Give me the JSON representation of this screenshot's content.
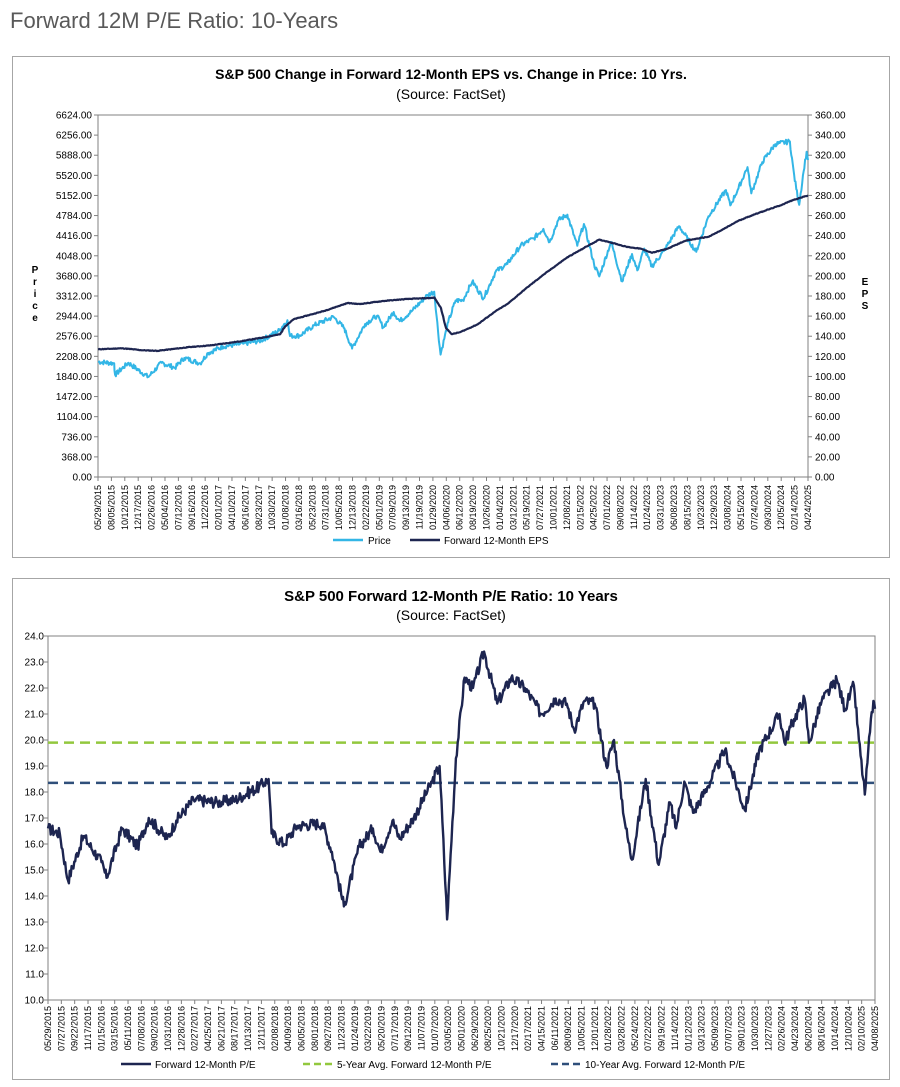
{
  "page_title": "Forward 12M P/E Ratio: 10-Years",
  "colors": {
    "price": "#33b6e6",
    "eps": "#1d2550",
    "pe": "#1d2550",
    "avg5": "#92c83e",
    "avg10": "#2f4f7a",
    "axis": "#808080",
    "text": "#000000"
  },
  "chart_data": [
    {
      "type": "line",
      "title": "S&P 500 Change in Forward 12-Month EPS vs. Change in Price: 10 Yrs.",
      "subtitle": "(Source: FactSet)",
      "ylabel_left": "Price",
      "ylabel_right": "EPS",
      "left_ticks": [
        "0.00",
        "368.00",
        "736.00",
        "1104.00",
        "1472.00",
        "1840.00",
        "2208.00",
        "2576.00",
        "2944.00",
        "3312.00",
        "3680.00",
        "4048.00",
        "4416.00",
        "4784.00",
        "5152.00",
        "5520.00",
        "5888.00",
        "6256.00",
        "6624.00"
      ],
      "right_ticks": [
        "0.00",
        "20.00",
        "40.00",
        "60.00",
        "80.00",
        "100.00",
        "120.00",
        "140.00",
        "160.00",
        "180.00",
        "200.00",
        "220.00",
        "240.00",
        "260.00",
        "280.00",
        "300.00",
        "320.00",
        "340.00",
        "360.00"
      ],
      "ylim_left": [
        0,
        6624
      ],
      "ylim_right": [
        0,
        360
      ],
      "x_range": [
        "2015-05-29",
        "2025-05-23"
      ],
      "x_ticks": [
        "05/29/2015",
        "08/05/2015",
        "10/12/2015",
        "12/17/2015",
        "02/26/2016",
        "05/04/2016",
        "07/12/2016",
        "09/16/2016",
        "11/22/2016",
        "02/01/2017",
        "04/10/2017",
        "06/16/2017",
        "08/23/2017",
        "10/30/2017",
        "01/08/2018",
        "03/16/2018",
        "05/23/2018",
        "07/31/2018",
        "10/05/2018",
        "12/13/2018",
        "02/22/2019",
        "05/01/2019",
        "07/09/2019",
        "09/13/2019",
        "11/19/2019",
        "01/29/2020",
        "04/06/2020",
        "06/12/2020",
        "08/19/2020",
        "10/26/2020",
        "01/04/2021",
        "03/12/2021",
        "05/19/2021",
        "07/27/2021",
        "10/01/2021",
        "12/08/2021",
        "02/15/2022",
        "04/25/2022",
        "07/01/2022",
        "09/08/2022",
        "11/14/2022",
        "01/24/2023",
        "03/31/2023",
        "06/08/2023",
        "08/15/2023",
        "10/23/2023",
        "12/29/2023",
        "03/08/2024",
        "05/15/2024",
        "07/24/2024",
        "09/30/2024",
        "12/05/2024",
        "02/14/2025",
        "04/24/2025"
      ],
      "legend": [
        "Price",
        "Forward 12-Month EPS"
      ],
      "legend_position": "bottom",
      "series": [
        {
          "name": "Price",
          "axis": "left",
          "points": [
            [
              "2015-05-29",
              2110
            ],
            [
              "2015-08-20",
              2080
            ],
            [
              "2015-08-25",
              1870
            ],
            [
              "2015-11-01",
              2090
            ],
            [
              "2016-02-11",
              1830
            ],
            [
              "2016-04-20",
              2090
            ],
            [
              "2016-06-27",
              2000
            ],
            [
              "2016-08-15",
              2180
            ],
            [
              "2016-11-04",
              2080
            ],
            [
              "2016-12-15",
              2270
            ],
            [
              "2017-03-01",
              2390
            ],
            [
              "2017-06-15",
              2440
            ],
            [
              "2017-09-15",
              2500
            ],
            [
              "2017-12-15",
              2680
            ],
            [
              "2018-01-26",
              2870
            ],
            [
              "2018-02-08",
              2580
            ],
            [
              "2018-04-01",
              2590
            ],
            [
              "2018-06-15",
              2780
            ],
            [
              "2018-09-20",
              2930
            ],
            [
              "2018-11-15",
              2720
            ],
            [
              "2018-12-24",
              2350
            ],
            [
              "2019-03-01",
              2800
            ],
            [
              "2019-05-01",
              2950
            ],
            [
              "2019-06-03",
              2740
            ],
            [
              "2019-07-26",
              3020
            ],
            [
              "2019-08-26",
              2850
            ],
            [
              "2019-10-28",
              3040
            ],
            [
              "2020-01-17",
              3330
            ],
            [
              "2020-02-19",
              3390
            ],
            [
              "2020-03-23",
              2240
            ],
            [
              "2020-05-01",
              2830
            ],
            [
              "2020-06-08",
              3230
            ],
            [
              "2020-07-15",
              3230
            ],
            [
              "2020-09-02",
              3580
            ],
            [
              "2020-10-30",
              3270
            ],
            [
              "2020-12-31",
              3760
            ],
            [
              "2021-03-01",
              3900
            ],
            [
              "2021-05-07",
              4230
            ],
            [
              "2021-07-15",
              4370
            ],
            [
              "2021-09-02",
              4540
            ],
            [
              "2021-10-04",
              4300
            ],
            [
              "2021-11-18",
              4700
            ],
            [
              "2022-01-03",
              4800
            ],
            [
              "2022-02-23",
              4230
            ],
            [
              "2022-03-29",
              4630
            ],
            [
              "2022-05-20",
              3900
            ],
            [
              "2022-06-16",
              3670
            ],
            [
              "2022-08-16",
              4300
            ],
            [
              "2022-10-12",
              3580
            ],
            [
              "2022-12-01",
              4080
            ],
            [
              "2022-12-28",
              3780
            ],
            [
              "2023-02-02",
              4180
            ],
            [
              "2023-03-13",
              3850
            ],
            [
              "2023-05-15",
              4140
            ],
            [
              "2023-07-31",
              4590
            ],
            [
              "2023-10-27",
              4120
            ],
            [
              "2023-12-29",
              4770
            ],
            [
              "2024-03-28",
              5250
            ],
            [
              "2024-04-19",
              4970
            ],
            [
              "2024-05-31",
              5280
            ],
            [
              "2024-07-16",
              5670
            ],
            [
              "2024-08-05",
              5190
            ],
            [
              "2024-09-30",
              5760
            ],
            [
              "2024-12-06",
              6090
            ],
            [
              "2025-02-19",
              6140
            ],
            [
              "2025-03-13",
              5520
            ],
            [
              "2025-04-08",
              4980
            ],
            [
              "2025-05-01",
              5600
            ],
            [
              "2025-05-16",
              5950
            ],
            [
              "2025-05-23",
              5800
            ]
          ]
        },
        {
          "name": "Forward 12-Month EPS",
          "axis": "right",
          "points": [
            [
              "2015-05-29",
              127
            ],
            [
              "2015-10-01",
              128
            ],
            [
              "2016-01-15",
              126
            ],
            [
              "2016-04-01",
              125.5
            ],
            [
              "2016-09-01",
              129
            ],
            [
              "2017-01-01",
              131
            ],
            [
              "2017-06-01",
              135
            ],
            [
              "2017-10-01",
              139
            ],
            [
              "2017-12-20",
              142
            ],
            [
              "2018-01-15",
              150
            ],
            [
              "2018-03-01",
              157
            ],
            [
              "2018-08-01",
              165
            ],
            [
              "2018-12-01",
              173
            ],
            [
              "2019-02-01",
              172
            ],
            [
              "2019-06-01",
              175
            ],
            [
              "2019-10-01",
              177
            ],
            [
              "2020-02-01",
              178
            ],
            [
              "2020-02-20",
              178.5
            ],
            [
              "2020-03-25",
              168
            ],
            [
              "2020-04-20",
              148
            ],
            [
              "2020-05-20",
              142
            ],
            [
              "2020-07-01",
              144
            ],
            [
              "2020-10-01",
              152
            ],
            [
              "2020-12-31",
              165
            ],
            [
              "2021-03-01",
              172
            ],
            [
              "2021-06-01",
              187
            ],
            [
              "2021-09-01",
              201
            ],
            [
              "2021-12-31",
              218
            ],
            [
              "2022-04-01",
              228
            ],
            [
              "2022-06-15",
              236
            ],
            [
              "2022-08-01",
              234
            ],
            [
              "2022-11-01",
              229
            ],
            [
              "2023-01-15",
              227
            ],
            [
              "2023-03-15",
              223
            ],
            [
              "2023-06-01",
              227
            ],
            [
              "2023-09-01",
              235
            ],
            [
              "2023-12-31",
              239
            ],
            [
              "2024-03-01",
              245
            ],
            [
              "2024-06-01",
              255
            ],
            [
              "2024-09-01",
              262
            ],
            [
              "2024-12-31",
              270
            ],
            [
              "2025-03-01",
              275
            ],
            [
              "2025-05-23",
              280
            ]
          ]
        }
      ]
    },
    {
      "type": "line",
      "title": "S&P 500 Forward 12-Month P/E Ratio: 10 Years",
      "subtitle": "(Source: FactSet)",
      "y_ticks": [
        "10.0",
        "11.0",
        "12.0",
        "13.0",
        "14.0",
        "15.0",
        "16.0",
        "17.0",
        "18.0",
        "19.0",
        "20.0",
        "21.0",
        "22.0",
        "23.0",
        "24.0"
      ],
      "ylim": [
        10,
        24
      ],
      "x_range": [
        "2015-05-29",
        "2025-05-23"
      ],
      "x_ticks": [
        "05/29/2015",
        "07/27/2015",
        "09/22/2015",
        "11/17/2015",
        "01/15/2016",
        "03/15/2016",
        "05/11/2016",
        "07/08/2016",
        "09/02/2016",
        "10/31/2016",
        "12/28/2016",
        "02/27/2017",
        "04/25/2017",
        "06/21/2017",
        "08/17/2017",
        "10/13/2017",
        "12/11/2017",
        "02/08/2018",
        "04/09/2018",
        "06/05/2018",
        "08/01/2018",
        "09/27/2018",
        "11/23/2018",
        "01/24/2019",
        "03/22/2019",
        "05/20/2019",
        "07/17/2019",
        "09/12/2019",
        "11/07/2019",
        "01/07/2020",
        "03/05/2020",
        "05/01/2020",
        "06/29/2020",
        "08/25/2020",
        "10/21/2020",
        "12/17/2020",
        "02/17/2021",
        "04/15/2021",
        "06/11/2021",
        "08/09/2021",
        "10/05/2021",
        "12/01/2021",
        "01/28/2022",
        "03/28/2022",
        "05/24/2022",
        "07/22/2022",
        "09/19/2022",
        "11/14/2022",
        "01/12/2023",
        "03/13/2023",
        "05/09/2023",
        "07/07/2023",
        "09/01/2023",
        "10/30/2023",
        "12/27/2023",
        "02/26/2024",
        "04/23/2024",
        "06/20/2024",
        "08/16/2024",
        "10/14/2024",
        "12/10/2024",
        "02/10/2025",
        "04/08/2025"
      ],
      "legend": [
        "Forward 12-Month P/E",
        "5-Year Avg. Forward 12-Month P/E",
        "10-Year Avg. Forward 12-Month P/E"
      ],
      "legend_position": "bottom",
      "avg5": 19.9,
      "avg10": 18.35,
      "series": [
        {
          "name": "Forward 12-Month P/E",
          "points": [
            [
              "2015-05-29",
              16.6
            ],
            [
              "2015-07-20",
              16.4
            ],
            [
              "2015-08-25",
              14.6
            ],
            [
              "2015-11-01",
              16.3
            ],
            [
              "2016-01-20",
              15.3
            ],
            [
              "2016-02-11",
              14.7
            ],
            [
              "2016-04-20",
              16.6
            ],
            [
              "2016-06-27",
              15.9
            ],
            [
              "2016-08-15",
              17.0
            ],
            [
              "2016-11-04",
              16.2
            ],
            [
              "2016-12-15",
              16.9
            ],
            [
              "2017-03-01",
              17.7
            ],
            [
              "2017-06-15",
              17.6
            ],
            [
              "2017-09-01",
              17.7
            ],
            [
              "2017-12-15",
              18.2
            ],
            [
              "2018-01-26",
              18.5
            ],
            [
              "2018-02-08",
              16.4
            ],
            [
              "2018-04-02",
              16.0
            ],
            [
              "2018-06-01",
              16.7
            ],
            [
              "2018-09-20",
              16.8
            ],
            [
              "2018-11-01",
              15.7
            ],
            [
              "2018-12-24",
              13.6
            ],
            [
              "2019-03-01",
              15.9
            ],
            [
              "2019-05-01",
              16.6
            ],
            [
              "2019-06-03",
              15.7
            ],
            [
              "2019-07-26",
              16.9
            ],
            [
              "2019-08-26",
              16.2
            ],
            [
              "2019-10-28",
              17.0
            ],
            [
              "2020-01-17",
              18.4
            ],
            [
              "2020-02-19",
              19.0
            ],
            [
              "2020-03-23",
              13.1
            ],
            [
              "2020-05-01",
              19.3
            ],
            [
              "2020-06-08",
              22.4
            ],
            [
              "2020-07-15",
              22.0
            ],
            [
              "2020-09-02",
              23.4
            ],
            [
              "2020-10-30",
              21.4
            ],
            [
              "2020-12-31",
              22.4
            ],
            [
              "2021-03-01",
              22.0
            ],
            [
              "2021-05-12",
              21.0
            ],
            [
              "2021-07-15",
              21.6
            ],
            [
              "2021-09-02",
              21.4
            ],
            [
              "2021-10-04",
              20.4
            ],
            [
              "2021-11-18",
              21.5
            ],
            [
              "2022-01-03",
              21.4
            ],
            [
              "2022-02-23",
              19.0
            ],
            [
              "2022-03-29",
              20.0
            ],
            [
              "2022-05-20",
              16.6
            ],
            [
              "2022-06-16",
              15.4
            ],
            [
              "2022-08-16",
              18.5
            ],
            [
              "2022-10-12",
              15.2
            ],
            [
              "2022-12-01",
              17.6
            ],
            [
              "2022-12-28",
              16.6
            ],
            [
              "2023-02-02",
              18.4
            ],
            [
              "2023-03-13",
              17.2
            ],
            [
              "2023-05-15",
              18.2
            ],
            [
              "2023-07-31",
              19.6
            ],
            [
              "2023-10-27",
              17.3
            ],
            [
              "2023-12-29",
              19.6
            ],
            [
              "2024-03-28",
              21.0
            ],
            [
              "2024-04-19",
              19.9
            ],
            [
              "2024-05-31",
              20.8
            ],
            [
              "2024-07-16",
              21.6
            ],
            [
              "2024-08-05",
              19.9
            ],
            [
              "2024-09-30",
              21.5
            ],
            [
              "2024-12-06",
              22.3
            ],
            [
              "2025-01-10",
              21.2
            ],
            [
              "2025-02-19",
              22.1
            ],
            [
              "2025-03-13",
              20.0
            ],
            [
              "2025-04-08",
              17.9
            ],
            [
              "2025-05-01",
              20.3
            ],
            [
              "2025-05-16",
              21.5
            ],
            [
              "2025-05-23",
              21.2
            ]
          ]
        }
      ]
    }
  ]
}
